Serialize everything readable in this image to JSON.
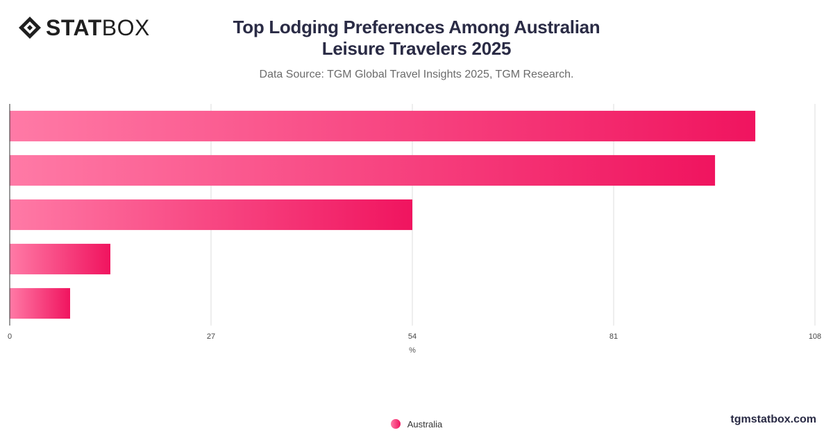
{
  "brand": {
    "logo_bold": "STAT",
    "logo_light": "BOX",
    "watermark": "tgmstatbox.com"
  },
  "header": {
    "title": "Top Lodging Preferences Among Australian Leisure Travelers 2025",
    "subtitle": "Data Source: TGM Global Travel Insights 2025, TGM Research."
  },
  "colors": {
    "bar_start": "#ff7aa6",
    "bar_end": "#f0145f",
    "grid": "#dddddd",
    "axis": "#333333"
  },
  "chart_data": {
    "type": "bar",
    "orientation": "horizontal",
    "categories": [
      "",
      "",
      "",
      "",
      ""
    ],
    "series": [
      {
        "name": "Australia",
        "values": [
          100,
          94.6,
          54,
          13.5,
          8.1
        ]
      }
    ],
    "xlim": [
      0,
      108
    ],
    "xticks": [
      0,
      27,
      54,
      81,
      108
    ],
    "xlabel": "%",
    "ylabel": "",
    "grid": true,
    "legend_position": "bottom-center"
  }
}
